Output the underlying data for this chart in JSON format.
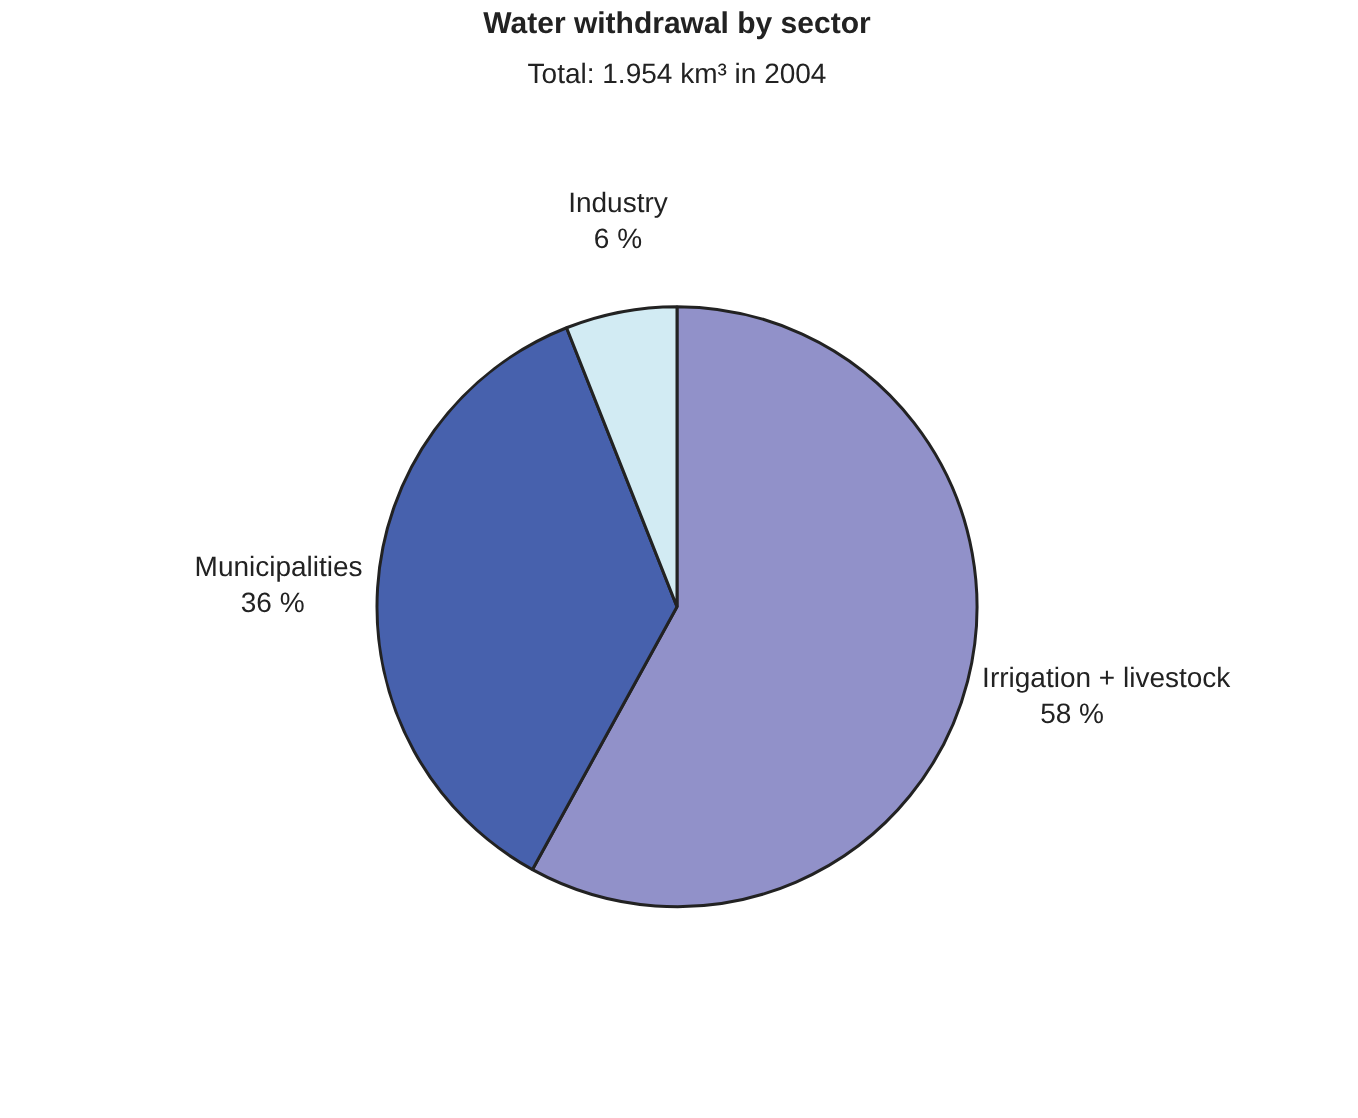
{
  "chart_data": {
    "type": "pie",
    "title": "Water withdrawal by sector",
    "subtitle": "Total: 1.954 km³ in 2004",
    "categories": [
      "Irrigation + livestock",
      "Municipalities",
      "Industry"
    ],
    "values": [
      58,
      36,
      6
    ],
    "colors": [
      "#9191c9",
      "#4761ad",
      "#d2ebf3"
    ],
    "value_labels": [
      "58 %",
      "36 %",
      "6 %"
    ]
  }
}
